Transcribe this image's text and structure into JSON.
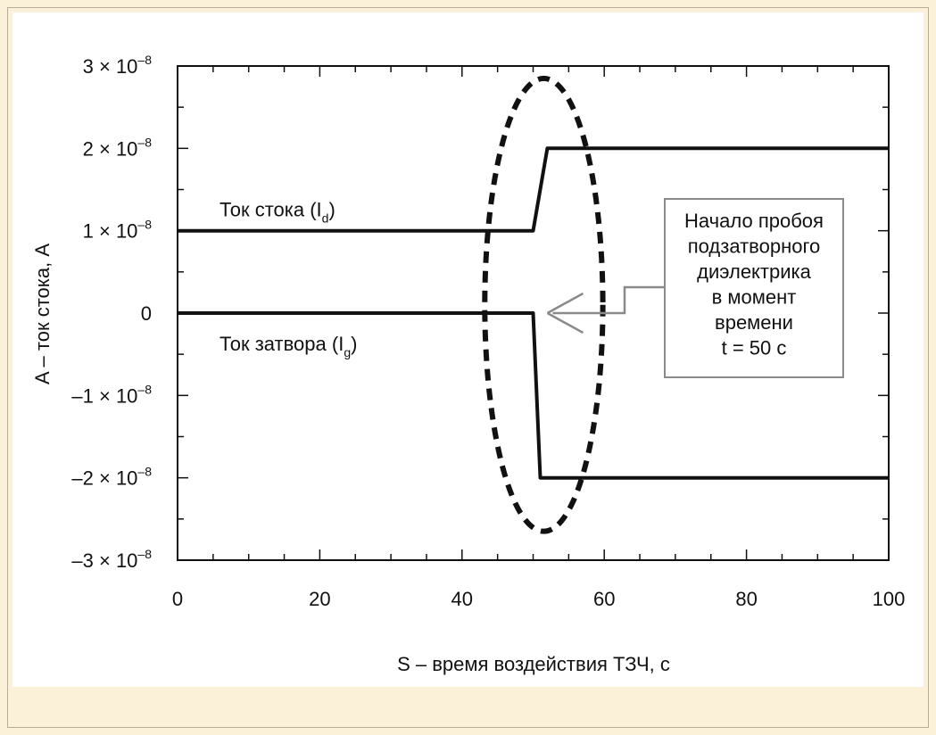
{
  "chart_data": {
    "type": "line",
    "xlabel": "S – время воздействия ТЗЧ, с",
    "ylabel": "A – ток стока, A",
    "xlim": [
      0,
      100
    ],
    "ylim": [
      -3e-08,
      3e-08
    ],
    "x_ticks": [
      {
        "v": 0,
        "label": "0"
      },
      {
        "v": 20,
        "label": "20"
      },
      {
        "v": 40,
        "label": "40"
      },
      {
        "v": 60,
        "label": "60"
      },
      {
        "v": 80,
        "label": "80"
      },
      {
        "v": 100,
        "label": "100"
      }
    ],
    "y_ticks": [
      {
        "v": 3e-08,
        "coef": "3",
        "exp": "–8"
      },
      {
        "v": 2e-08,
        "coef": "2",
        "exp": "–8"
      },
      {
        "v": 1e-08,
        "coef": "1",
        "exp": "–8"
      },
      {
        "v": 0,
        "coef": "0",
        "exp": ""
      },
      {
        "v": -1e-08,
        "coef": "–1",
        "exp": "–8"
      },
      {
        "v": -2e-08,
        "coef": "–2",
        "exp": "–8"
      },
      {
        "v": -3e-08,
        "coef": "–3",
        "exp": "–8"
      }
    ],
    "series": [
      {
        "name": "Ток стока (I",
        "subscript": "d",
        "name_suffix": ")",
        "x": [
          0,
          50,
          52,
          100
        ],
        "y": [
          1e-08,
          1e-08,
          2e-08,
          2e-08
        ]
      },
      {
        "name": "Ток затвора (I",
        "subscript": "g",
        "name_suffix": ")",
        "x": [
          0,
          50,
          51,
          100
        ],
        "y": [
          0,
          0,
          -2e-08,
          -2e-08
        ]
      }
    ],
    "annotation": {
      "lines": [
        "Начало  пробоя",
        "подзатворного",
        "диэлектрика",
        "в момент",
        "времени",
        "t = 50 c"
      ],
      "arrow_target": {
        "x": 52,
        "y": 0
      },
      "ellipse_center": {
        "x": 51.5,
        "y": 1e-09
      },
      "ellipse_x_halfwidth": 8.3,
      "ellipse_y_halfwidth": 2.75e-08
    },
    "grid": false,
    "legend": "none"
  },
  "colors": {
    "background": "#fbf0d8",
    "panel": "#ffffff",
    "line": "#111111",
    "annotation_box": "#8a8a8a"
  }
}
